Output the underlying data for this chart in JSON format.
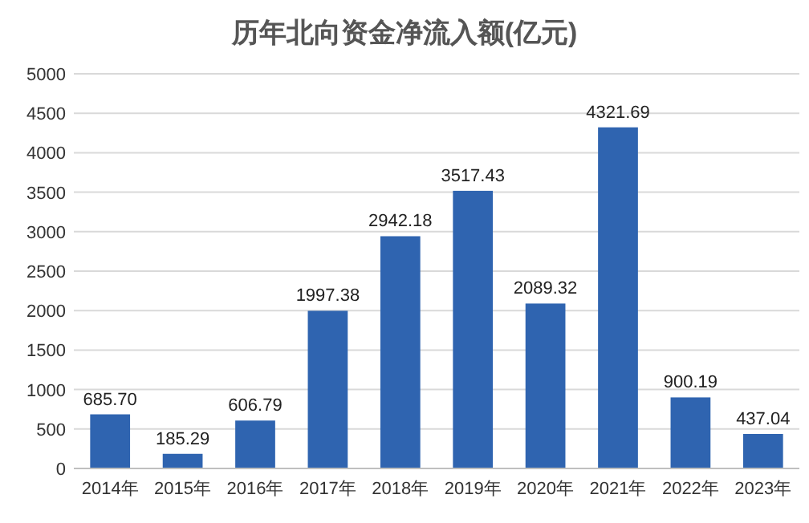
{
  "chart_data": {
    "type": "bar",
    "title": "历年北向资金净流入额(亿元)",
    "categories": [
      "2014年",
      "2015年",
      "2016年",
      "2017年",
      "2018年",
      "2019年",
      "2020年",
      "2021年",
      "2022年",
      "2023年"
    ],
    "values": [
      685.7,
      185.29,
      606.79,
      1997.38,
      2942.18,
      3517.43,
      2089.32,
      4321.69,
      900.19,
      437.04
    ],
    "color": "#2f64b0",
    "ylim": [
      0,
      5000
    ],
    "yticks": [
      0,
      500,
      1000,
      1500,
      2000,
      2500,
      3000,
      3500,
      4000,
      4500,
      5000
    ],
    "value_labels": [
      "685.70",
      "185.29",
      "606.79",
      "1997.38",
      "2942.18",
      "3517.43",
      "2089.32",
      "4321.69",
      "900.19",
      "437.04"
    ],
    "grid": "y"
  }
}
